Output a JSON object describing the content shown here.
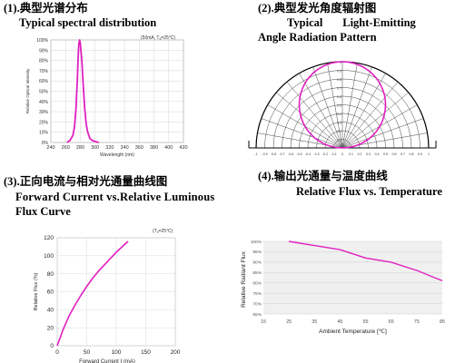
{
  "panels": [
    {
      "number": "(1).",
      "title_cn": "典型光谱分布",
      "title_en": "Typical spectral distribution"
    },
    {
      "number": "(2).",
      "title_cn": "典型发光角度辐射图",
      "title_en_1": "Typical       Light-Emitting",
      "title_en_2": "Angle Radiation Pattern"
    },
    {
      "number": "(3).",
      "title_cn": "正向电流与相对光通量曲线图",
      "title_en_1": "Forward Current vs.Relative Luminous",
      "title_en_2": "Flux Curve"
    },
    {
      "number": "(4).",
      "title_cn": "输出光通量与温度曲线",
      "title_en": "Relative Flux vs. Temperature"
    }
  ],
  "chart_data": [
    {
      "type": "line",
      "condition": "(50mA, Tₐ=25°C)",
      "xlabel": "Wavelength (nm)",
      "ylabel": "Relative Optical Intensity",
      "xlim": [
        240,
        420
      ],
      "ylim": [
        0,
        100
      ],
      "x_ticks": [
        240,
        260,
        280,
        300,
        320,
        340,
        360,
        380,
        400,
        420
      ],
      "y_ticks": [
        "0%",
        "10%",
        "20%",
        "30%",
        "40%",
        "50%",
        "60%",
        "70%",
        "80%",
        "90%",
        "100%"
      ],
      "color": "#e020c0",
      "x": [
        262,
        266,
        270,
        272,
        274,
        276,
        277,
        278,
        279,
        280,
        282,
        284,
        286,
        288,
        290,
        293,
        296,
        300,
        305
      ],
      "y": [
        0,
        2,
        7,
        15,
        32,
        62,
        82,
        96,
        100,
        97,
        80,
        55,
        33,
        18,
        10,
        4,
        2,
        1,
        0
      ]
    },
    {
      "type": "polar",
      "tick_labels": [
        "-1",
        "-0.9",
        "-0.8",
        "-0.7",
        "-0.6",
        "-0.5",
        "-0.4",
        "-0.3",
        "-0.2",
        "-0.1",
        "0",
        "0.1",
        "0.2",
        "0.3",
        "0.4",
        "0.5",
        "0.6",
        "0.7",
        "0.8",
        "0.9",
        "1"
      ],
      "color": "#e020c0",
      "pattern": "cos(θ) lobe, full width ≈ 120°"
    },
    {
      "type": "line",
      "condition": "(Tₐ=25°C)",
      "xlabel": "Forward Current I",
      "xlabel_suffix": "(mA)",
      "ylabel": "Relative Flux (%)",
      "xlim": [
        0,
        200
      ],
      "ylim": [
        0,
        120
      ],
      "x_ticks": [
        0,
        50,
        100,
        150,
        200
      ],
      "y_ticks": [
        0,
        20,
        40,
        60,
        80,
        100,
        120
      ],
      "color": "#e020c0",
      "x": [
        0,
        10,
        20,
        30,
        40,
        50,
        60,
        70,
        80,
        90,
        100,
        110,
        120
      ],
      "y": [
        0,
        18,
        33,
        45,
        56,
        66,
        75,
        83,
        90,
        97,
        104,
        110,
        116
      ]
    },
    {
      "type": "line",
      "xlabel": "Ambient Temperature [℃]",
      "ylabel": "Relative Radiant Flux",
      "xlim": [
        15,
        85
      ],
      "ylim": [
        65,
        100
      ],
      "x_ticks": [
        15,
        25,
        35,
        45,
        55,
        65,
        75,
        85
      ],
      "y_ticks": [
        "65%",
        "70%",
        "75%",
        "80%",
        "85%",
        "90%",
        "95%",
        "100%"
      ],
      "color": "#e020c0",
      "x": [
        25,
        35,
        45,
        55,
        65,
        75,
        85
      ],
      "y": [
        100,
        98,
        96,
        92,
        90,
        86,
        81
      ]
    }
  ]
}
